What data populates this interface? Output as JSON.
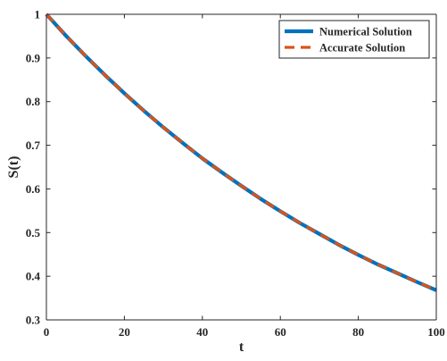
{
  "chart_data": {
    "type": "line",
    "xlabel": "t",
    "ylabel": "S(t)",
    "xlim": [
      0,
      100
    ],
    "ylim": [
      0.3,
      1
    ],
    "xticks": [
      0,
      20,
      40,
      60,
      80,
      100
    ],
    "yticks": [
      0.3,
      0.4,
      0.5,
      0.6,
      0.7,
      0.8,
      0.9,
      1
    ],
    "xtick_labels": [
      "0",
      "20",
      "40",
      "60",
      "80",
      "100"
    ],
    "ytick_labels": [
      "0.3",
      "0.4",
      "0.5",
      "0.6",
      "0.7",
      "0.8",
      "0.9",
      "1"
    ],
    "grid": false,
    "legend_position": "top-right",
    "x": [
      0,
      5,
      10,
      15,
      20,
      25,
      30,
      35,
      40,
      45,
      50,
      55,
      60,
      65,
      70,
      75,
      80,
      85,
      90,
      95,
      100
    ],
    "series": [
      {
        "name": "Numerical Solution",
        "color": "#0072BD",
        "style": "solid",
        "values": [
          1.0,
          0.951,
          0.905,
          0.861,
          0.819,
          0.779,
          0.741,
          0.705,
          0.67,
          0.638,
          0.607,
          0.577,
          0.549,
          0.522,
          0.497,
          0.472,
          0.449,
          0.427,
          0.407,
          0.387,
          0.368
        ]
      },
      {
        "name": "Accurate Solution",
        "color": "#D95319",
        "style": "dashed",
        "values": [
          1.0,
          0.951,
          0.905,
          0.861,
          0.819,
          0.779,
          0.741,
          0.705,
          0.67,
          0.638,
          0.607,
          0.577,
          0.549,
          0.522,
          0.497,
          0.472,
          0.449,
          0.427,
          0.407,
          0.387,
          0.368
        ]
      }
    ]
  }
}
